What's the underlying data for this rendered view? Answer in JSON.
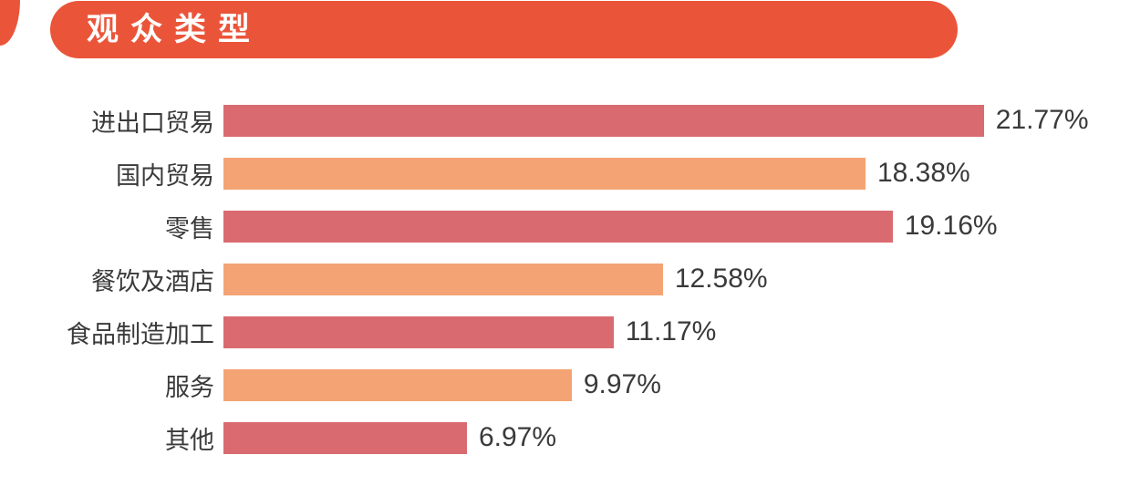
{
  "header": {
    "title": "观众类型"
  },
  "theme": {
    "banner_color": "#EA5539",
    "bar_red": "#D96B70",
    "bar_orange": "#F4A474",
    "text_color": "#3A3A3A",
    "title_text_color": "#FFFFFF",
    "background": "#FFFFFF"
  },
  "chart_data": {
    "type": "bar",
    "orientation": "horizontal",
    "title": "观众类型",
    "categories": [
      "进出口贸易",
      "国内贸易",
      "零售",
      "餐饮及酒店",
      "食品制造加工",
      "服务",
      "其他"
    ],
    "values": [
      21.77,
      18.38,
      19.16,
      12.58,
      11.17,
      9.97,
      6.97
    ],
    "value_labels": [
      "21.77%",
      "18.38%",
      "19.16%",
      "12.58%",
      "11.17%",
      "9.97%",
      "6.97%"
    ],
    "bar_colors": [
      "#D96B70",
      "#F4A474",
      "#D96B70",
      "#F4A474",
      "#D96B70",
      "#F4A474",
      "#D96B70"
    ],
    "xlim": [
      0,
      22.5
    ],
    "grid": false,
    "legend": false,
    "value_label_position": "outside-end",
    "category_label_position": "left"
  }
}
